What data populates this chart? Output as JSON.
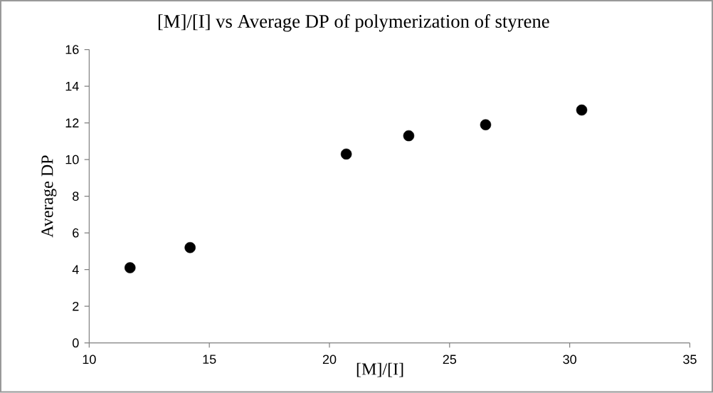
{
  "chart_data": {
    "type": "scatter",
    "title": "[M]/[I] vs Average DP of polymerization of styrene",
    "xlabel": "[M]/[I]",
    "ylabel": "Average DP",
    "x": [
      11.7,
      14.2,
      20.7,
      23.3,
      26.5,
      30.5
    ],
    "values": [
      4.1,
      5.2,
      10.3,
      11.3,
      11.9,
      12.7
    ],
    "color": "#000000",
    "grid": false,
    "xlim": [
      10,
      35
    ],
    "xticks": [
      10,
      15,
      20,
      25,
      30,
      35
    ],
    "ylim": [
      0,
      16
    ],
    "yticks": [
      0,
      2,
      4,
      6,
      8,
      10,
      12,
      14,
      16
    ]
  }
}
